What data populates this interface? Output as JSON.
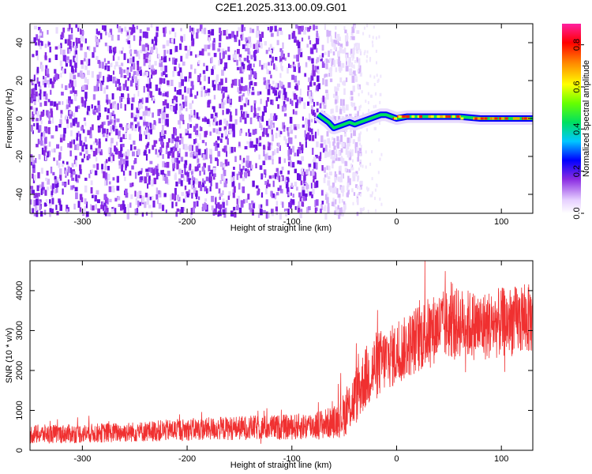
{
  "title": "C2E1.2025.313.00.09.G01",
  "chart_data": [
    {
      "type": "heatmap",
      "title": "C2E1.2025.313.00.09.G01",
      "xlabel": "Height of straight line (km)",
      "ylabel": "Frequency (Hz)",
      "xlim": [
        -350,
        130
      ],
      "ylim": [
        -50,
        50
      ],
      "xticks": [
        -300,
        -200,
        -100,
        0,
        100
      ],
      "yticks": [
        -40,
        -20,
        0,
        20,
        40
      ],
      "noise_region": [
        -350,
        -45
      ],
      "signal_track": {
        "x": [
          -75,
          -70,
          -65,
          -60,
          -55,
          -50,
          -45,
          -40,
          -35,
          -30,
          -25,
          -20,
          -15,
          -10,
          -5,
          0,
          10,
          20,
          40,
          60,
          80,
          100,
          130
        ],
        "freq": [
          2,
          0,
          -2,
          -5,
          -4,
          -3,
          -2,
          -3,
          -2,
          -1,
          0,
          1,
          2,
          2,
          1,
          0,
          1,
          1,
          1,
          1,
          0,
          0,
          0
        ]
      },
      "colorbar": {
        "label": "Normalized spectral amplitude",
        "range": [
          0,
          0.9
        ],
        "ticks": [
          0.0,
          0.2,
          0.4,
          0.6,
          0.8
        ]
      }
    },
    {
      "type": "line",
      "xlabel": "Height of straight line (km)",
      "ylabel": "SNR (10 * v/v)",
      "xlim": [
        -350,
        130
      ],
      "ylim": [
        0,
        4750
      ],
      "xticks": [
        -300,
        -200,
        -100,
        0,
        100
      ],
      "yticks": [
        0,
        1000,
        2000,
        3000,
        4000
      ],
      "color": "#f03030",
      "series": [
        {
          "name": "SNR",
          "x": [
            -350,
            -300,
            -250,
            -200,
            -150,
            -100,
            -80,
            -60,
            -50,
            -40,
            -30,
            -20,
            -10,
            0,
            10,
            20,
            40,
            60,
            80,
            100,
            130
          ],
          "mean": [
            400,
            420,
            460,
            520,
            560,
            580,
            620,
            700,
            900,
            1300,
            1800,
            2100,
            2300,
            2400,
            2600,
            2800,
            3100,
            3200,
            3100,
            3200,
            3300
          ],
          "spread": [
            300,
            300,
            320,
            350,
            380,
            400,
            450,
            500,
            700,
            900,
            1000,
            1100,
            1000,
            1000,
            1000,
            1100,
            1100,
            1100,
            1100,
            1100,
            1100
          ]
        }
      ]
    }
  ]
}
